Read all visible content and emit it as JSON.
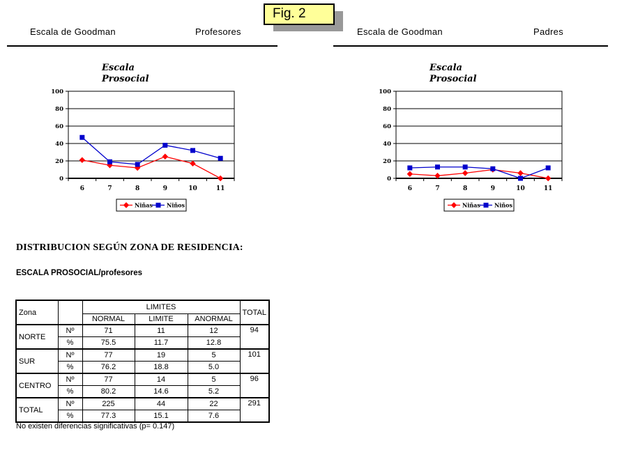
{
  "figure_label": "Fig. 2",
  "colors": {
    "ninas_series": "#ff0000",
    "ninos_series": "#0000cc",
    "fig_box_bg": "#ffff99",
    "fig_box_shadow": "#999999"
  },
  "panels": [
    {
      "scale_label": "Escala de Goodman",
      "group_label": "Profesores"
    },
    {
      "scale_label": "Escala de Goodman",
      "group_label": "Padres"
    }
  ],
  "chart_data": [
    {
      "type": "line",
      "panel": "Profesores",
      "title": "Escala Prosocial",
      "title_lines": [
        "Escala",
        "Prosocial"
      ],
      "categories": [
        "6",
        "7",
        "8",
        "9",
        "10",
        "11"
      ],
      "series": [
        {
          "name": "Niñas",
          "color": "#ff0000",
          "marker": "diamond",
          "values": [
            21,
            15,
            12,
            25,
            17,
            0
          ]
        },
        {
          "name": "Niños",
          "color": "#0000cc",
          "marker": "square",
          "values": [
            47,
            19,
            16,
            38,
            32,
            23
          ]
        }
      ],
      "ylim": [
        0,
        100
      ],
      "yticks": [
        0,
        20,
        40,
        60,
        80,
        100
      ],
      "grid": true,
      "legend_position": "bottom"
    },
    {
      "type": "line",
      "panel": "Padres",
      "title": "Escala Prosocial",
      "title_lines": [
        "Escala",
        "Prosocial"
      ],
      "categories": [
        "6",
        "7",
        "8",
        "9",
        "10",
        "11"
      ],
      "series": [
        {
          "name": "Niñas",
          "color": "#ff0000",
          "marker": "diamond",
          "values": [
            5,
            3,
            6,
            10,
            6,
            0
          ]
        },
        {
          "name": "Niños",
          "color": "#0000cc",
          "marker": "square",
          "values": [
            12,
            13,
            13,
            11,
            0,
            12
          ]
        }
      ],
      "ylim": [
        0,
        100
      ],
      "yticks": [
        0,
        20,
        40,
        60,
        80,
        100
      ],
      "grid": true,
      "legend_position": "bottom"
    }
  ],
  "section": {
    "heading": "DISTRIBUCION SEGÚN ZONA DE RESIDENCIA:",
    "subheading": "ESCALA PROSOCIAL/profesores",
    "note": "No existen diferencias significativas (p= 0.147)"
  },
  "table": {
    "corner_label": "Zona",
    "group_header": "LIMITES",
    "total_header": "TOTAL",
    "sub_headers": [
      "NORMAL",
      "LIMITE",
      "ANORMAL"
    ],
    "measure_labels": [
      "Nº",
      "%"
    ],
    "rows": [
      {
        "zona": "NORTE",
        "n": [
          "71",
          "11",
          "12"
        ],
        "pct": [
          "75.5",
          "11.7",
          "12.8"
        ],
        "total": "94"
      },
      {
        "zona": "SUR",
        "n": [
          "77",
          "19",
          "5"
        ],
        "pct": [
          "76.2",
          "18.8",
          "5.0"
        ],
        "total": "101"
      },
      {
        "zona": "CENTRO",
        "n": [
          "77",
          "14",
          "5"
        ],
        "pct": [
          "80.2",
          "14.6",
          "5.2"
        ],
        "total": "96"
      },
      {
        "zona": "TOTAL",
        "n": [
          "225",
          "44",
          "22"
        ],
        "pct": [
          "77.3",
          "15.1",
          "7.6"
        ],
        "total": "291"
      }
    ]
  }
}
